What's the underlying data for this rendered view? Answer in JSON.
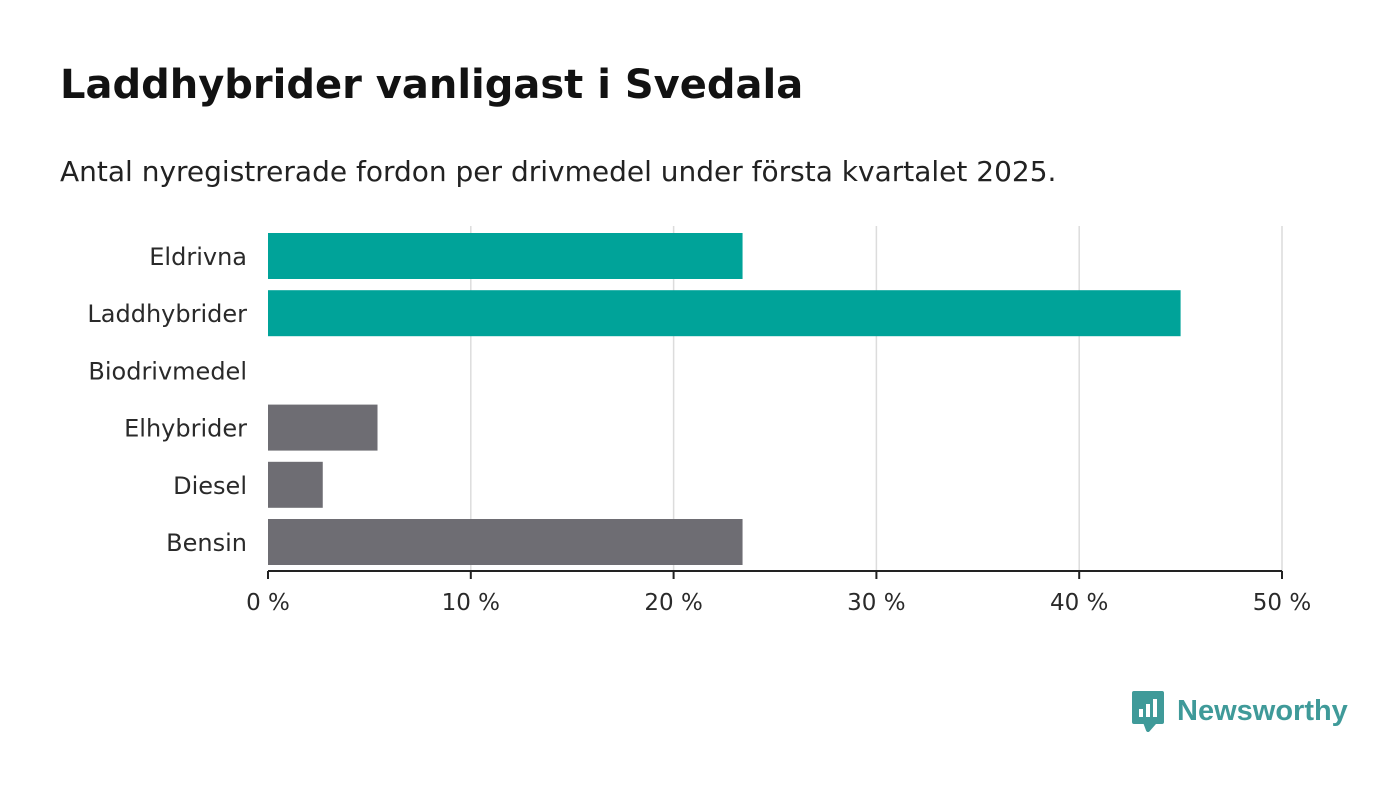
{
  "title": "Laddhybrider vanligast i Svedala",
  "subtitle": "Antal nyregistrerade fordon per drivmedel under första kvartalet 2025.",
  "brand": {
    "name": "Newsworthy",
    "color": "#3f9a99"
  },
  "colors": {
    "highlight": "#00a399",
    "other": "#6e6d73",
    "grid": "#dcdcdc",
    "axis": "#222222"
  },
  "chart_data": {
    "type": "bar",
    "orientation": "horizontal",
    "title": "Laddhybrider vanligast i Svedala",
    "subtitle": "Antal nyregistrerade fordon per drivmedel under första kvartalet 2025.",
    "categories": [
      "Eldrivna",
      "Laddhybrider",
      "Biodrivmedel",
      "Elhybrider",
      "Diesel",
      "Bensin"
    ],
    "values": [
      23.4,
      45.0,
      0,
      5.4,
      2.7,
      23.4
    ],
    "highlighted": [
      true,
      true,
      false,
      false,
      false,
      false
    ],
    "xlim": [
      0,
      50
    ],
    "xticks": [
      0,
      10,
      20,
      30,
      40,
      50
    ],
    "xtick_labels": [
      "0 %",
      "10 %",
      "20 %",
      "30 %",
      "40 %",
      "50 %"
    ],
    "xlabel": "",
    "ylabel": "",
    "grid": "vertical",
    "legend": "none"
  }
}
